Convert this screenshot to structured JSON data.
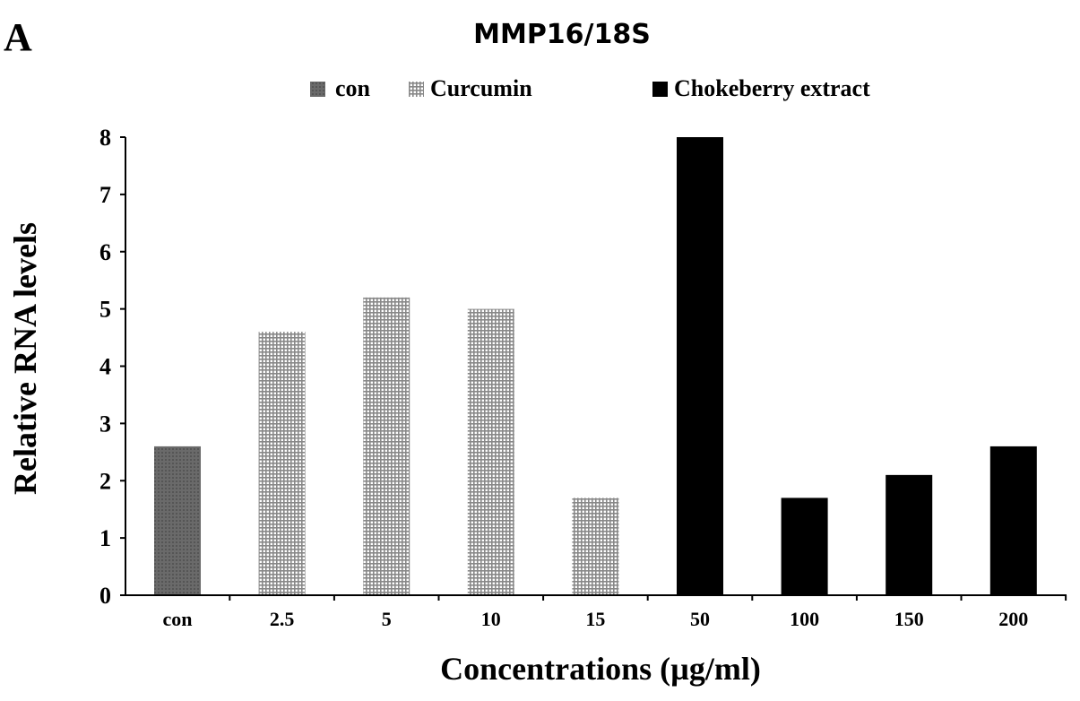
{
  "panel_label": "A",
  "chart_data": {
    "type": "bar",
    "title": "MMP16/18S",
    "xlabel": "Concentrations (µg/ml)",
    "ylabel": "Relative RNA levels",
    "ylim": [
      0,
      8
    ],
    "yticks": [
      "0",
      "1",
      "2",
      "3",
      "4",
      "5",
      "6",
      "7",
      "8"
    ],
    "categories": [
      "con",
      "2.5",
      "5",
      "10",
      "15",
      "50",
      "100",
      "150",
      "200"
    ],
    "values": [
      2.6,
      4.6,
      5.2,
      5.0,
      1.7,
      8.0,
      1.7,
      2.1,
      2.6
    ],
    "groups": [
      "con",
      "Curcumin",
      "Curcumin",
      "Curcumin",
      "Curcumin",
      "Chokeberry extract",
      "Chokeberry extract",
      "Chokeberry extract",
      "Chokeberry extract"
    ],
    "legend": [
      {
        "name": "con",
        "color": "#666666"
      },
      {
        "name": "Curcumin",
        "color": "#b0b0b0"
      },
      {
        "name": "Chokeberry extract",
        "color": "#000000"
      }
    ],
    "legend_position": "top",
    "grid": false
  }
}
